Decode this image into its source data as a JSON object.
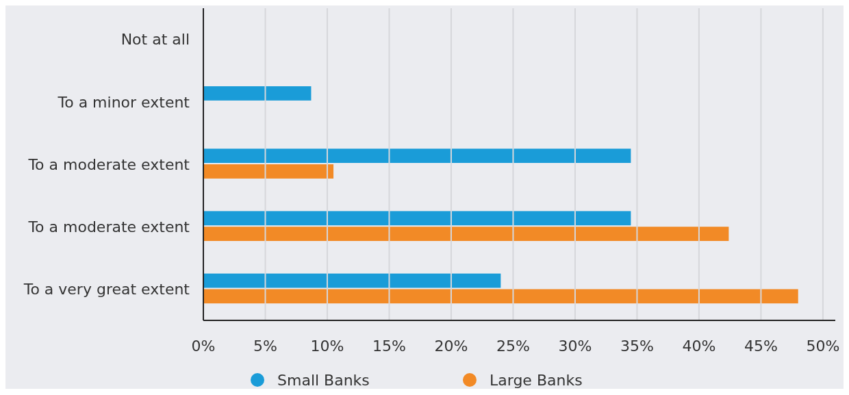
{
  "chart_data": {
    "type": "bar",
    "orientation": "horizontal",
    "categories": [
      "Not at all",
      "To a minor extent",
      "To a moderate extent",
      "To a moderate extent",
      "To a very great extent"
    ],
    "series": [
      {
        "name": "Small Banks",
        "color": "#1a9cd8",
        "values": [
          0,
          8.7,
          34.5,
          34.5,
          24.0
        ]
      },
      {
        "name": "Large Banks",
        "color": "#f28a26",
        "values": [
          0,
          0,
          10.5,
          42.4,
          48.0
        ]
      }
    ],
    "xlim": [
      0,
      51
    ],
    "xticks": [
      {
        "value": 0,
        "label": "0%"
      },
      {
        "value": 5,
        "label": "5%"
      },
      {
        "value": 10,
        "label": "10%"
      },
      {
        "value": 15,
        "label": "15%"
      },
      {
        "value": 20,
        "label": "20%"
      },
      {
        "value": 25,
        "label": "25%"
      },
      {
        "value": 30,
        "label": "30%"
      },
      {
        "value": 35,
        "label": "35%"
      },
      {
        "value": 40,
        "label": "40%"
      },
      {
        "value": 45,
        "label": "45%"
      },
      {
        "value": 50,
        "label": "50%"
      }
    ],
    "grid": "x",
    "legend": "bottom"
  }
}
